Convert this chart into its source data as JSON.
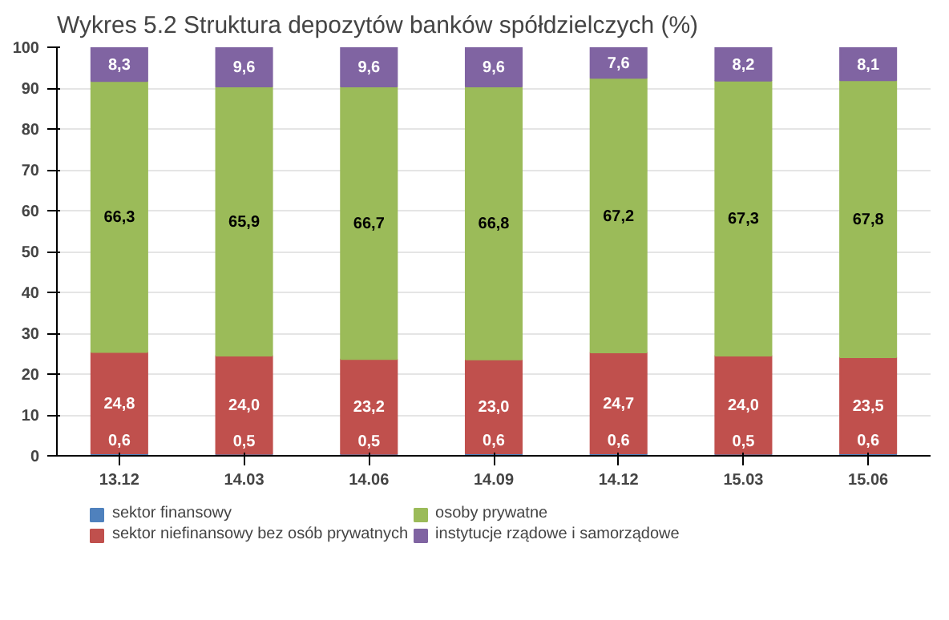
{
  "chart_data": {
    "type": "bar",
    "title": "Wykres 5.2 Struktura depozytów banków spółdzielczych (%)",
    "stacked": true,
    "categories": [
      "13.12",
      "14.03",
      "14.06",
      "14.09",
      "14.12",
      "15.03",
      "15.06"
    ],
    "series": [
      {
        "name": "sektor finansowy",
        "color": "#4f81bd",
        "values": [
          0.6,
          0.5,
          0.5,
          0.6,
          0.6,
          0.5,
          0.6
        ],
        "value_labels": [
          "0,6",
          "0,5",
          "0,5",
          "0,6",
          "0,6",
          "0,5",
          "0,6"
        ]
      },
      {
        "name": "sektor niefinansowy bez osób prywatnych",
        "color": "#c0504d",
        "values": [
          24.8,
          24.0,
          23.2,
          23.0,
          24.7,
          24.0,
          23.5
        ],
        "value_labels": [
          "24,8",
          "24,0",
          "23,2",
          "23,0",
          "24,7",
          "24,0",
          "23,5"
        ]
      },
      {
        "name": "osoby prywatne",
        "color": "#9bbb59",
        "values": [
          66.3,
          65.9,
          66.7,
          66.8,
          67.2,
          67.3,
          67.8
        ],
        "value_labels": [
          "66,3",
          "65,9",
          "66,7",
          "66,8",
          "67,2",
          "67,3",
          "67,8"
        ]
      },
      {
        "name": "instytucje rządowe i samorządowe",
        "color": "#8064a2",
        "values": [
          8.3,
          9.6,
          9.6,
          9.6,
          7.6,
          8.2,
          8.1
        ],
        "value_labels": [
          "8,3",
          "9,6",
          "9,6",
          "9,6",
          "7,6",
          "8,2",
          "8,1"
        ]
      }
    ],
    "ylim": [
      0,
      100
    ],
    "yticks": [
      0,
      10,
      20,
      30,
      40,
      50,
      60,
      70,
      80,
      90,
      100
    ],
    "grid": "y",
    "legend": "bottom"
  }
}
